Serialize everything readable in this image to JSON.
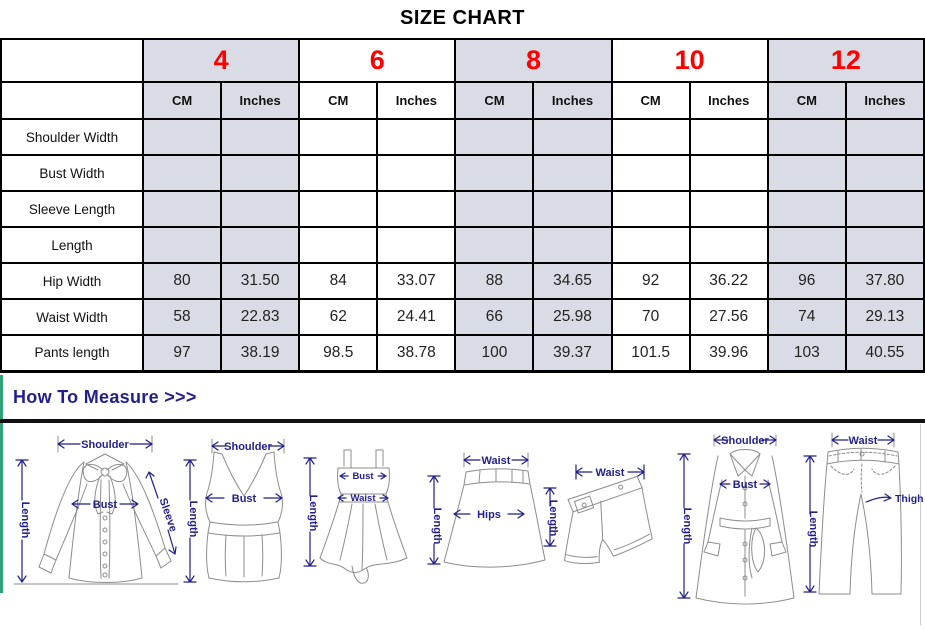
{
  "title": "SIZE CHART",
  "table": {
    "sizes": [
      "4",
      "6",
      "8",
      "10",
      "12"
    ],
    "shaded_size_indexes": [
      0,
      2,
      4
    ],
    "unit_headers": [
      "CM",
      "Inches"
    ],
    "rows": [
      {
        "label": "Shoulder Width",
        "values": [
          "",
          "",
          "",
          "",
          "",
          "",
          "",
          "",
          "",
          ""
        ]
      },
      {
        "label": "Bust Width",
        "values": [
          "",
          "",
          "",
          "",
          "",
          "",
          "",
          "",
          "",
          ""
        ]
      },
      {
        "label": "Sleeve Length",
        "values": [
          "",
          "",
          "",
          "",
          "",
          "",
          "",
          "",
          "",
          ""
        ]
      },
      {
        "label": "Length",
        "values": [
          "",
          "",
          "",
          "",
          "",
          "",
          "",
          "",
          "",
          ""
        ]
      },
      {
        "label": "Hip Width",
        "values": [
          "80",
          "31.50",
          "84",
          "33.07",
          "88",
          "34.65",
          "92",
          "36.22",
          "96",
          "37.80"
        ]
      },
      {
        "label": "Waist Width",
        "values": [
          "58",
          "22.83",
          "62",
          "24.41",
          "66",
          "25.98",
          "70",
          "27.56",
          "74",
          "29.13"
        ]
      },
      {
        "label": "Pants length",
        "values": [
          "97",
          "38.19",
          "98.5",
          "38.78",
          "100",
          "39.37",
          "101.5",
          "39.96",
          "103",
          "40.55"
        ]
      }
    ]
  },
  "measure": {
    "heading": "How To Measure >>>",
    "figures": {
      "blouse": {
        "shoulder": "Shoulder",
        "length": "Length",
        "bust": "Bust",
        "sleeve": "Sleeve"
      },
      "tank_top": {
        "shoulder": "Shoulder",
        "length": "Length",
        "bust": "Bust"
      },
      "dress": {
        "length": "Length",
        "bust": "Bust",
        "waist": "Waist"
      },
      "skirt": {
        "waist": "Waist",
        "length": "Length",
        "hips": "Hips"
      },
      "shorts": {
        "waist": "Waist",
        "length": "Length"
      },
      "coat": {
        "shoulder": "Shoulder",
        "length": "Length",
        "bust": "Bust"
      },
      "pants": {
        "waist": "Waist",
        "length": "Length",
        "thigh": "Thigh"
      }
    }
  },
  "colors": {
    "size_number_red": "#ff0000",
    "header_cell_gray": "#d9dce4",
    "measure_navy": "#221f8c",
    "left_bar_green": "#2fa377",
    "table_border_black": "#000000"
  }
}
